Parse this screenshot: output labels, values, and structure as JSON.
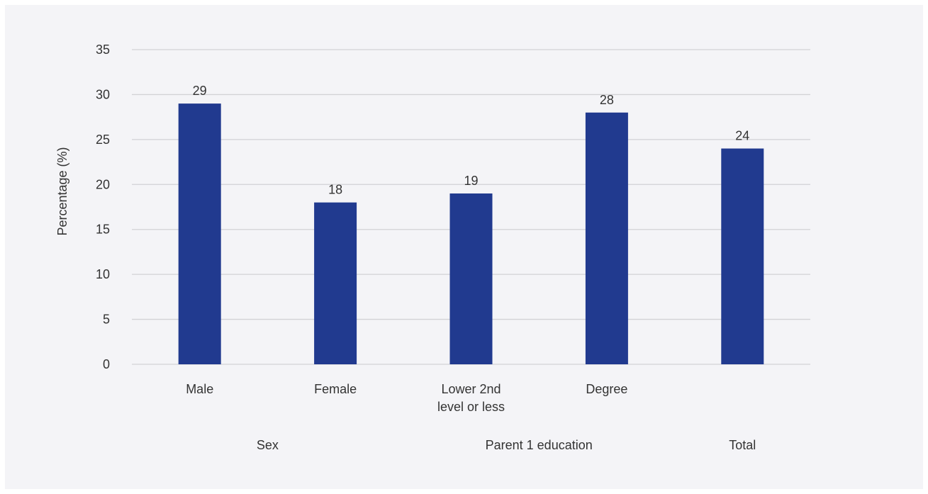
{
  "chart_data": {
    "type": "bar",
    "categories": [
      "Male",
      "Female",
      "Lower 2nd level or less",
      "Degree",
      ""
    ],
    "category_lines": [
      [
        "Male"
      ],
      [
        "Female"
      ],
      [
        "Lower 2nd",
        "level or less"
      ],
      [
        "Degree"
      ],
      [
        ""
      ]
    ],
    "values": [
      29,
      18,
      19,
      28,
      24
    ],
    "groups": [
      {
        "label": "Sex",
        "categories": [
          "Male",
          "Female"
        ]
      },
      {
        "label": "Parent 1 education",
        "categories": [
          "Lower 2nd level or less",
          "Degree"
        ]
      },
      {
        "label": "Total",
        "categories": [
          ""
        ]
      }
    ],
    "ylabel": "Percentage (%)",
    "xlabel": "",
    "ylim": [
      0,
      35
    ],
    "yticks": [
      0,
      5,
      10,
      15,
      20,
      25,
      30,
      35
    ],
    "grid": true,
    "show_data_labels": true,
    "bar_color": "#213a8f",
    "grid_color": "#d2d2d6",
    "background_color": "#f4f4f7"
  }
}
